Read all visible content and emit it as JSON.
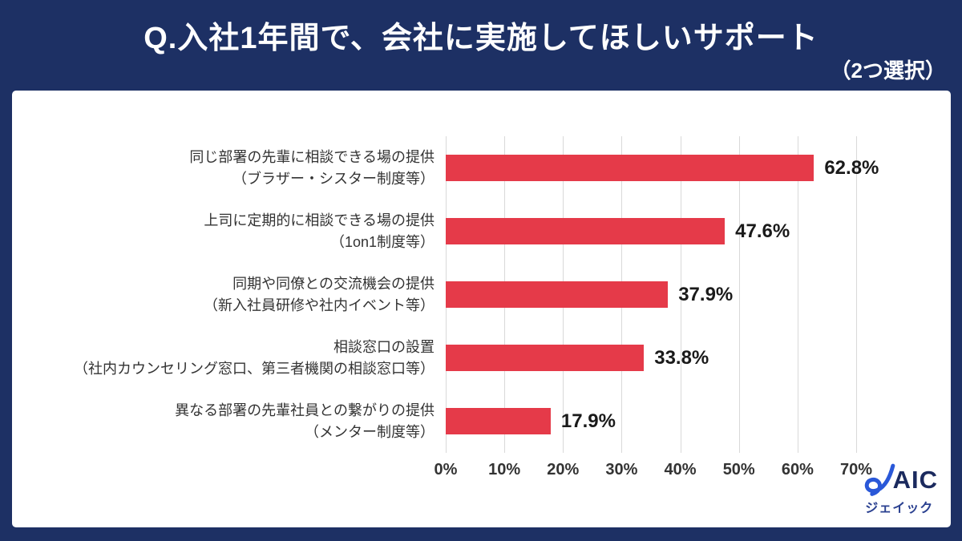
{
  "header": {
    "title": "Q.入社1年間で、会社に実施してほしいサポート",
    "subtitle": "（2つ選択）"
  },
  "chart_data": {
    "type": "bar",
    "orientation": "horizontal",
    "title": "Q.入社1年間で、会社に実施してほしいサポート",
    "subtitle": "（2つ選択）",
    "categories": [
      "同じ部署の先輩に相談できる場の提供（ブラザー・シスター制度等）",
      "上司に定期的に相談できる場の提供（1on1制度等）",
      "同期や同僚との交流機会の提供（新入社員研修や社内イベント等）",
      "相談窓口の設置（社内カウンセリング窓口、第三者機関の相談窓口等）",
      "異なる部署の先輩社員との繋がりの提供（メンター制度等）"
    ],
    "category_lines": [
      [
        "同じ部署の先輩に相談できる場の提供",
        "（ブラザー・シスター制度等）"
      ],
      [
        "上司に定期的に相談できる場の提供",
        "（1on1制度等）"
      ],
      [
        "同期や同僚との交流機会の提供",
        "（新入社員研修や社内イベント等）"
      ],
      [
        "相談窓口の設置",
        "（社内カウンセリング窓口、第三者機関の相談窓口等）"
      ],
      [
        "異なる部署の先輩社員との繋がりの提供",
        "（メンター制度等）"
      ]
    ],
    "values": [
      62.8,
      47.6,
      37.9,
      33.8,
      17.9
    ],
    "value_labels": [
      "62.8%",
      "47.6%",
      "37.9%",
      "33.8%",
      "17.9%"
    ],
    "x_ticks": [
      {
        "value": 0,
        "label": "0%"
      },
      {
        "value": 10,
        "label": "10%"
      },
      {
        "value": 20,
        "label": "20%"
      },
      {
        "value": 30,
        "label": "30%"
      },
      {
        "value": 40,
        "label": "40%"
      },
      {
        "value": 50,
        "label": "50%"
      },
      {
        "value": 60,
        "label": "60%"
      },
      {
        "value": 70,
        "label": "70%"
      }
    ],
    "xlim": [
      0,
      70
    ],
    "ylabel": "",
    "xlabel": "",
    "legend": "none",
    "grid": "vertical",
    "bar_color": "#e53a49",
    "gridline_color": "#d9d9d9",
    "background_color": "#1d3064",
    "plot_background": "#ffffff"
  },
  "logo": {
    "letters": "AIC",
    "subtext": "ジェイック"
  }
}
